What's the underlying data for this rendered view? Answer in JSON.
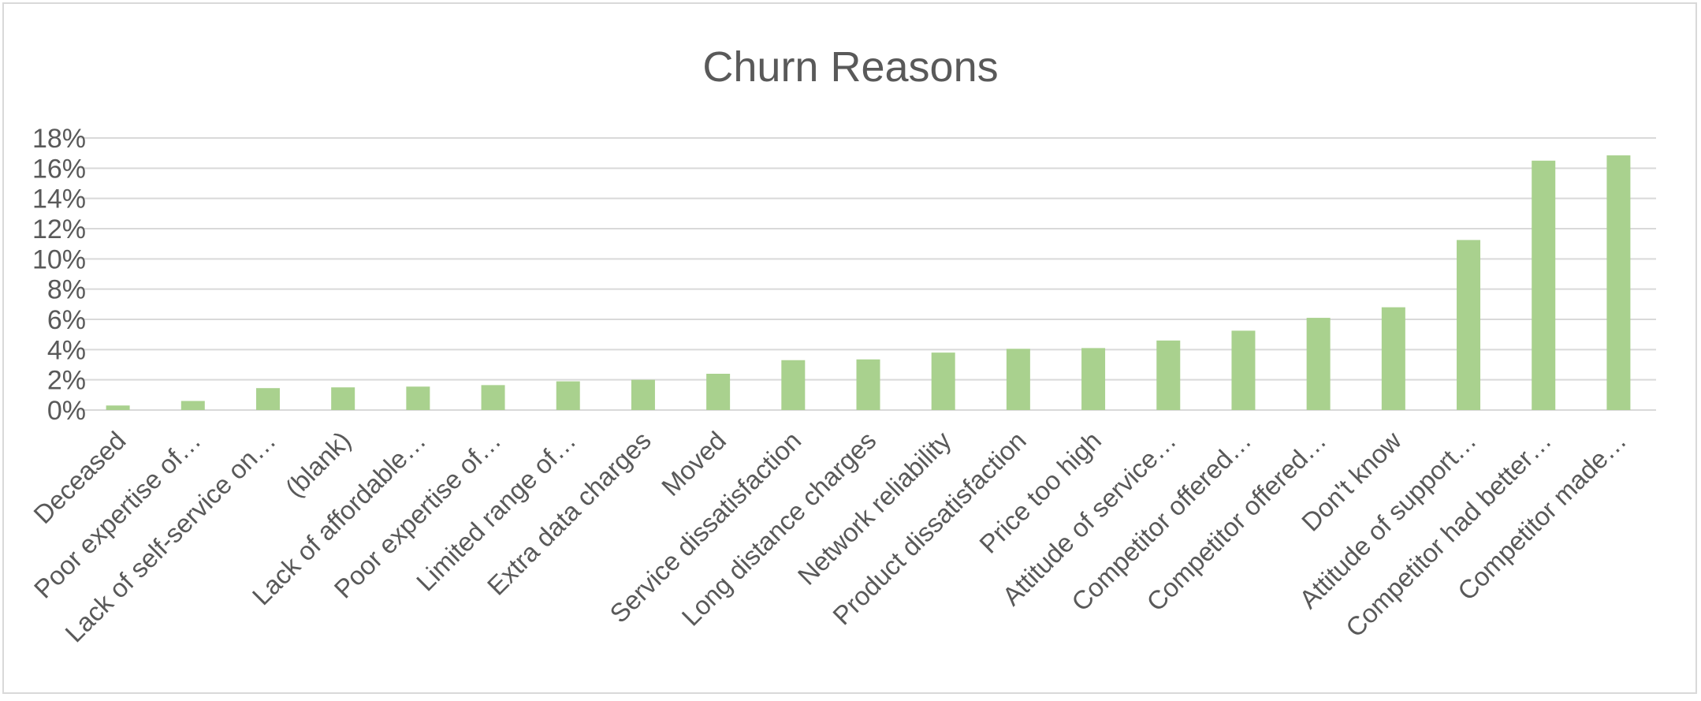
{
  "chart_data": {
    "type": "bar",
    "title": "Churn Reasons",
    "xlabel": "",
    "ylabel": "",
    "ylim": [
      0,
      18
    ],
    "y_ticks": [
      "0%",
      "2%",
      "4%",
      "6%",
      "8%",
      "10%",
      "12%",
      "14%",
      "16%",
      "18%"
    ],
    "grid": true,
    "legend": "none",
    "colors": {
      "bar": "#a9d18e",
      "grid": "#d9d9d9",
      "text": "#595959"
    },
    "categories": [
      "Deceased",
      "Poor expertise of…",
      "Lack of self-service on…",
      "(blank)",
      "Lack of affordable…",
      "Poor expertise of…",
      "Limited range of…",
      "Extra data charges",
      "Moved",
      "Service dissatisfaction",
      "Long distance charges",
      "Network reliability",
      "Product dissatisfaction",
      "Price too high",
      "Attitude of service…",
      "Competitor offered…",
      "Competitor offered…",
      "Don't know",
      "Attitude of support…",
      "Competitor had better…",
      "Competitor made…"
    ],
    "values": [
      0.3,
      0.6,
      1.45,
      1.5,
      1.55,
      1.65,
      1.9,
      2.0,
      2.4,
      3.3,
      3.35,
      3.8,
      4.05,
      4.1,
      4.6,
      5.25,
      6.1,
      6.8,
      11.25,
      16.5,
      16.85
    ]
  }
}
